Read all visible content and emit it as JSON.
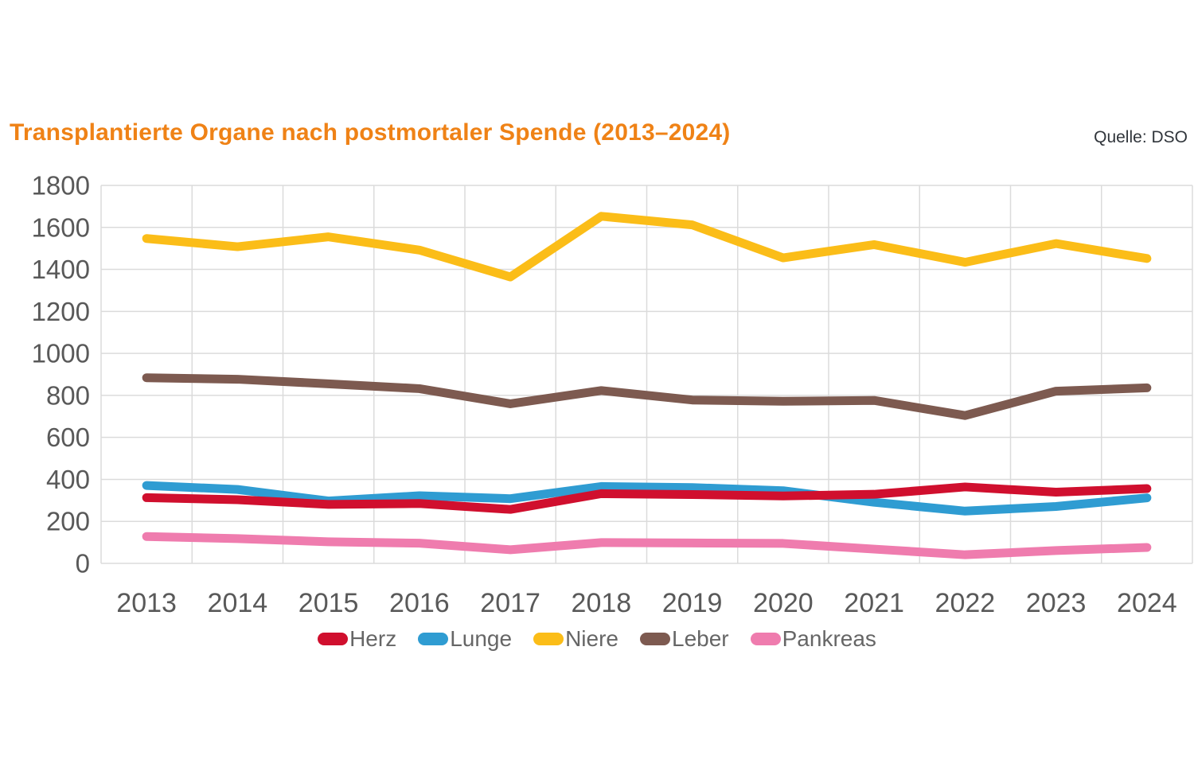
{
  "header": {
    "title": "Transplantierte Organe nach postmortaler Spende (2013–2024)",
    "source": "Quelle: DSO"
  },
  "colors": {
    "title": "#EF8216",
    "source_text": "#30353B",
    "grid": "#DBDBDB",
    "tick_label": "#595959",
    "legend_label": "#666666",
    "herz": "#D00F2E",
    "lunge": "#2F9CD2",
    "niere": "#FBBD18",
    "leber": "#7D5A50",
    "pankreas": "#EF7CAE"
  },
  "chart_data": {
    "type": "line",
    "title": "Transplantierte Organe nach postmortaler Spende (2013–2024)",
    "xlabel": "",
    "ylabel": "",
    "categories": [
      "2013",
      "2014",
      "2015",
      "2016",
      "2017",
      "2018",
      "2019",
      "2020",
      "2021",
      "2022",
      "2023",
      "2024"
    ],
    "series": [
      {
        "name": "Herz",
        "color": "#D00F2E",
        "values": [
          313,
          303,
          281,
          285,
          257,
          332,
          328,
          321,
          329,
          364,
          339,
          356
        ]
      },
      {
        "name": "Lunge",
        "color": "#2F9CD2",
        "values": [
          371,
          352,
          297,
          322,
          308,
          366,
          361,
          346,
          291,
          249,
          271,
          312
        ]
      },
      {
        "name": "Niere",
        "color": "#FBBD18",
        "values": [
          1547,
          1508,
          1555,
          1492,
          1364,
          1653,
          1612,
          1455,
          1518,
          1434,
          1523,
          1452
        ]
      },
      {
        "name": "Leber",
        "color": "#7D5A50",
        "values": [
          884,
          877,
          855,
          832,
          760,
          823,
          778,
          772,
          776,
          704,
          820,
          836
        ]
      },
      {
        "name": "Pankreas",
        "color": "#EF7CAE",
        "values": [
          128,
          118,
          103,
          96,
          65,
          99,
          97,
          95,
          68,
          41,
          61,
          76
        ]
      }
    ],
    "ylim": [
      0,
      1800
    ],
    "ytick_step": 200,
    "grid": true,
    "legend_position": "bottom"
  }
}
